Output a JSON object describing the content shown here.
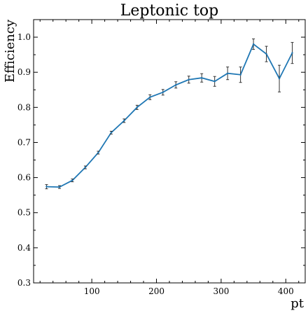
{
  "chart_data": {
    "type": "line",
    "title": "Leptonic top",
    "xlabel": "pt",
    "ylabel": "Efficiency",
    "xlim": [
      10,
      430
    ],
    "ylim": [
      0.3,
      1.05
    ],
    "xticks": [
      100,
      200,
      300,
      400
    ],
    "yticks": [
      0.3,
      0.4,
      0.5,
      0.6,
      0.7,
      0.8,
      0.9,
      1.0
    ],
    "ytick_labels": [
      "0.3",
      "0.4",
      "0.5",
      "0.6",
      "0.7",
      "0.8",
      "0.9",
      "1.0"
    ],
    "grid": false,
    "color": "#1f77b4",
    "series": [
      {
        "x": [
          30,
          50,
          70,
          90,
          110,
          130,
          150,
          170,
          190,
          210,
          230,
          250,
          270,
          290,
          310,
          330,
          350,
          370,
          390,
          410
        ],
        "y": [
          0.574,
          0.573,
          0.592,
          0.629,
          0.671,
          0.728,
          0.762,
          0.8,
          0.829,
          0.843,
          0.864,
          0.879,
          0.884,
          0.874,
          0.897,
          0.893,
          0.98,
          0.952,
          0.882,
          0.955
        ],
        "yerr": [
          0.006,
          0.004,
          0.004,
          0.004,
          0.004,
          0.004,
          0.005,
          0.006,
          0.007,
          0.008,
          0.009,
          0.01,
          0.012,
          0.014,
          0.018,
          0.022,
          0.015,
          0.022,
          0.038,
          0.03
        ]
      }
    ]
  }
}
